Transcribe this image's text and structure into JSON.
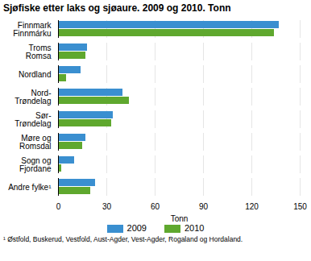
{
  "chart_data": {
    "type": "bar",
    "orientation": "horizontal",
    "title": "Sjøfiske etter laks og sjøaure. 2009 og 2010. Tonn",
    "categories": [
      "Finnmark\nFinnmárku",
      "Troms\nRomsa",
      "Nordland",
      "Nord-\nTrøndelag",
      "Sør-\nTrøndelag",
      "Møre og\nRomsdal",
      "Sogn og\nFjordane",
      "Andre fylke¹"
    ],
    "series": [
      {
        "name": "2009",
        "color": "#3a8fd0",
        "values": [
          137,
          18,
          14,
          40,
          34,
          17,
          10,
          23
        ]
      },
      {
        "name": "2010",
        "color": "#5fa82e",
        "values": [
          134,
          17,
          5,
          44,
          33,
          15,
          2,
          20
        ]
      }
    ],
    "xlabel": "Tonn",
    "xlim": [
      0,
      150
    ],
    "xticks": [
      0,
      30,
      60,
      90,
      120,
      150
    ],
    "grid": true,
    "legend": "bottom",
    "footnote": "¹ Østfold, Buskerud, Vestfold, Aust-Agder, Vest-Agder, Rogaland og Hordaland."
  }
}
